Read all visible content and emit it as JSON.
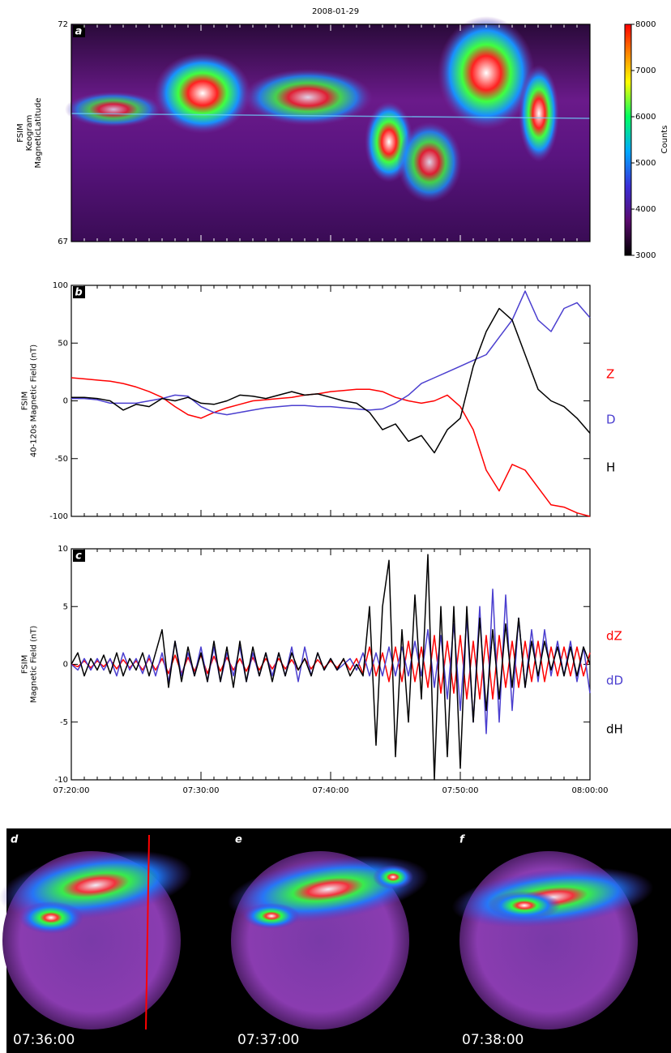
{
  "title": "2008-01-29",
  "chart_data": [
    {
      "type": "image",
      "panel_label": "a",
      "ylabel": [
        "FSIM",
        "Keogram",
        "MagneticLatitude"
      ],
      "ylim": [
        67,
        72
      ],
      "yticks": [
        67,
        72
      ],
      "colorbar": {
        "clim": [
          3000,
          8000
        ],
        "ticks": [
          3000,
          4000,
          5000,
          6000,
          7000,
          8000
        ],
        "label": "Counts"
      }
    },
    {
      "type": "line",
      "panel_label": "b",
      "ylabel": [
        "FSIM",
        "40-120s Magnetic Field (nT)"
      ],
      "xlim": [
        "07:20:00",
        "08:00:00"
      ],
      "ylim": [
        -100,
        100
      ],
      "yticks": [
        -100,
        -50,
        0,
        50,
        100
      ],
      "x": [
        "07:20:00",
        "07:21:00",
        "07:22:00",
        "07:23:00",
        "07:24:00",
        "07:25:00",
        "07:26:00",
        "07:27:00",
        "07:28:00",
        "07:29:00",
        "07:30:00",
        "07:31:00",
        "07:32:00",
        "07:33:00",
        "07:34:00",
        "07:35:00",
        "07:36:00",
        "07:37:00",
        "07:38:00",
        "07:39:00",
        "07:40:00",
        "07:41:00",
        "07:42:00",
        "07:43:00",
        "07:44:00",
        "07:45:00",
        "07:46:00",
        "07:47:00",
        "07:48:00",
        "07:49:00",
        "07:50:00",
        "07:51:00",
        "07:52:00",
        "07:53:00",
        "07:54:00",
        "07:55:00",
        "07:56:00",
        "07:57:00",
        "07:58:00",
        "07:59:00",
        "08:00:00"
      ],
      "series": [
        {
          "name": "Z",
          "color": "#ff0000",
          "values": [
            20,
            19,
            18,
            17,
            15,
            12,
            8,
            3,
            -5,
            -12,
            -15,
            -10,
            -6,
            -3,
            0,
            1,
            2,
            3,
            5,
            6,
            8,
            9,
            10,
            10,
            8,
            3,
            0,
            -2,
            0,
            5,
            -5,
            -25,
            -60,
            -78,
            -55,
            -60,
            -75,
            -90,
            -92,
            -97,
            -100
          ]
        },
        {
          "name": "D",
          "color": "#4b3fcf",
          "values": [
            2,
            2,
            1,
            -2,
            -2,
            -2,
            0,
            2,
            5,
            4,
            -5,
            -10,
            -12,
            -10,
            -8,
            -6,
            -5,
            -4,
            -4,
            -5,
            -5,
            -6,
            -7,
            -8,
            -7,
            -2,
            5,
            15,
            20,
            25,
            30,
            35,
            40,
            55,
            70,
            95,
            70,
            60,
            80,
            85,
            72
          ]
        },
        {
          "name": "H",
          "color": "#000000",
          "values": [
            3,
            3,
            2,
            0,
            -8,
            -3,
            -5,
            2,
            0,
            3,
            -2,
            -3,
            0,
            5,
            4,
            2,
            5,
            8,
            5,
            6,
            3,
            0,
            -2,
            -10,
            -25,
            -20,
            -35,
            -30,
            -45,
            -25,
            -15,
            30,
            60,
            80,
            70,
            40,
            10,
            0,
            -5,
            -15,
            -28
          ]
        }
      ]
    },
    {
      "type": "line",
      "panel_label": "c",
      "ylabel": [
        "FSIM",
        "Magnetic Field (nT)"
      ],
      "xlim": [
        "07:20:00",
        "08:00:00"
      ],
      "ylim": [
        -10,
        10
      ],
      "yticks": [
        -10,
        -5,
        0,
        5,
        10
      ],
      "xticks": [
        "07:20:00",
        "07:30:00",
        "07:40:00",
        "07:50:00",
        "08:00:00"
      ],
      "x": [
        "07:20:00",
        "07:20:30",
        "07:21:00",
        "07:21:30",
        "07:22:00",
        "07:22:30",
        "07:23:00",
        "07:23:30",
        "07:24:00",
        "07:24:30",
        "07:25:00",
        "07:25:30",
        "07:26:00",
        "07:26:30",
        "07:27:00",
        "07:27:30",
        "07:28:00",
        "07:28:30",
        "07:29:00",
        "07:29:30",
        "07:30:00",
        "07:30:30",
        "07:31:00",
        "07:31:30",
        "07:32:00",
        "07:32:30",
        "07:33:00",
        "07:33:30",
        "07:34:00",
        "07:34:30",
        "07:35:00",
        "07:35:30",
        "07:36:00",
        "07:36:30",
        "07:37:00",
        "07:37:30",
        "07:38:00",
        "07:38:30",
        "07:39:00",
        "07:39:30",
        "07:40:00",
        "07:40:30",
        "07:41:00",
        "07:41:30",
        "07:42:00",
        "07:42:30",
        "07:43:00",
        "07:43:30",
        "07:44:00",
        "07:44:30",
        "07:45:00",
        "07:45:30",
        "07:46:00",
        "07:46:30",
        "07:47:00",
        "07:47:30",
        "07:48:00",
        "07:48:30",
        "07:49:00",
        "07:49:30",
        "07:50:00",
        "07:50:30",
        "07:51:00",
        "07:51:30",
        "07:52:00",
        "07:52:30",
        "07:53:00",
        "07:53:30",
        "07:54:00",
        "07:54:30",
        "07:55:00",
        "07:55:30",
        "07:56:00",
        "07:56:30",
        "07:57:00",
        "07:57:30",
        "07:58:00",
        "07:58:30",
        "07:59:00",
        "07:59:30",
        "08:00:00"
      ],
      "series": [
        {
          "name": "dZ",
          "color": "#ff0000",
          "values": [
            0,
            -0.2,
            0.3,
            -0.3,
            0.3,
            -0.2,
            0.4,
            -0.4,
            0.4,
            -0.3,
            0.3,
            -0.5,
            0.5,
            -0.5,
            0.5,
            -0.8,
            0.8,
            -0.8,
            0.6,
            -0.6,
            0.8,
            -0.8,
            0.7,
            -0.6,
            0.6,
            -0.5,
            0.5,
            -0.6,
            0.6,
            -0.5,
            0.5,
            -0.4,
            0.5,
            -0.4,
            0.4,
            -0.5,
            0.5,
            -0.4,
            0.4,
            -0.3,
            0.3,
            -0.3,
            0.4,
            -0.5,
            0.5,
            -0.8,
            1.5,
            -1,
            1,
            -1.5,
            1.5,
            -1.5,
            2,
            -1.5,
            1.5,
            -2,
            2.5,
            -2.5,
            2,
            -2.5,
            2.5,
            -3,
            2,
            -3,
            2.5,
            -3,
            2.5,
            -2,
            2,
            -2,
            2,
            -1.5,
            2,
            -1.5,
            1.5,
            -1,
            1.5,
            -1,
            1.5,
            -1,
            1
          ]
        },
        {
          "name": "dD",
          "color": "#4b3fcf",
          "values": [
            0,
            -0.5,
            0.5,
            -0.5,
            0.5,
            -0.5,
            0.5,
            -1,
            1,
            -0.5,
            0.5,
            -0.8,
            0.8,
            -1,
            1,
            -1.5,
            2,
            -1,
            1,
            -1,
            1.5,
            -1.5,
            1.5,
            -1.5,
            1,
            -1,
            1.5,
            -1.5,
            1,
            -1,
            1,
            -1,
            1,
            -1,
            1.5,
            -1.5,
            1.5,
            -1,
            1,
            -0.5,
            0.5,
            -0.5,
            0,
            0.5,
            -0.5,
            1,
            -1,
            1,
            -1,
            1.5,
            -1,
            1.5,
            -1,
            2,
            -1,
            3,
            -2,
            2.5,
            -3,
            3.5,
            -4,
            4,
            -5,
            5,
            -6,
            6.5,
            -5,
            6,
            -4,
            4,
            -2,
            3,
            -1.5,
            3,
            -1,
            2,
            -1,
            2,
            -1.5,
            1.5,
            -2.5
          ]
        },
        {
          "name": "dH",
          "color": "#000000",
          "values": [
            0,
            1,
            -1,
            0.5,
            -0.5,
            0.8,
            -0.8,
            1,
            -1,
            0.5,
            -0.5,
            1,
            -1,
            1,
            3,
            -2,
            2,
            -1.5,
            1.5,
            -1,
            1,
            -1.5,
            2,
            -1.5,
            1.5,
            -2,
            2,
            -1.5,
            1.5,
            -1,
            1,
            -1.5,
            1,
            -1,
            1,
            -0.5,
            0.5,
            -1,
            1,
            -0.5,
            0.5,
            -0.5,
            0.5,
            -1,
            0,
            -1,
            5,
            -7,
            5,
            9,
            -8,
            3,
            -5,
            6,
            -3,
            9.5,
            -10,
            5,
            -8,
            5,
            -9,
            5,
            -5,
            4,
            -4,
            3,
            -3,
            3.5,
            -2,
            4,
            -2,
            2,
            -1,
            2,
            -0.5,
            1.5,
            -1,
            1.5,
            -1,
            1.5,
            0
          ]
        }
      ]
    }
  ],
  "images": [
    {
      "label": "d",
      "time": "07:36:00"
    },
    {
      "label": "e",
      "time": "07:37:00"
    },
    {
      "label": "f",
      "time": "07:38:00"
    }
  ]
}
